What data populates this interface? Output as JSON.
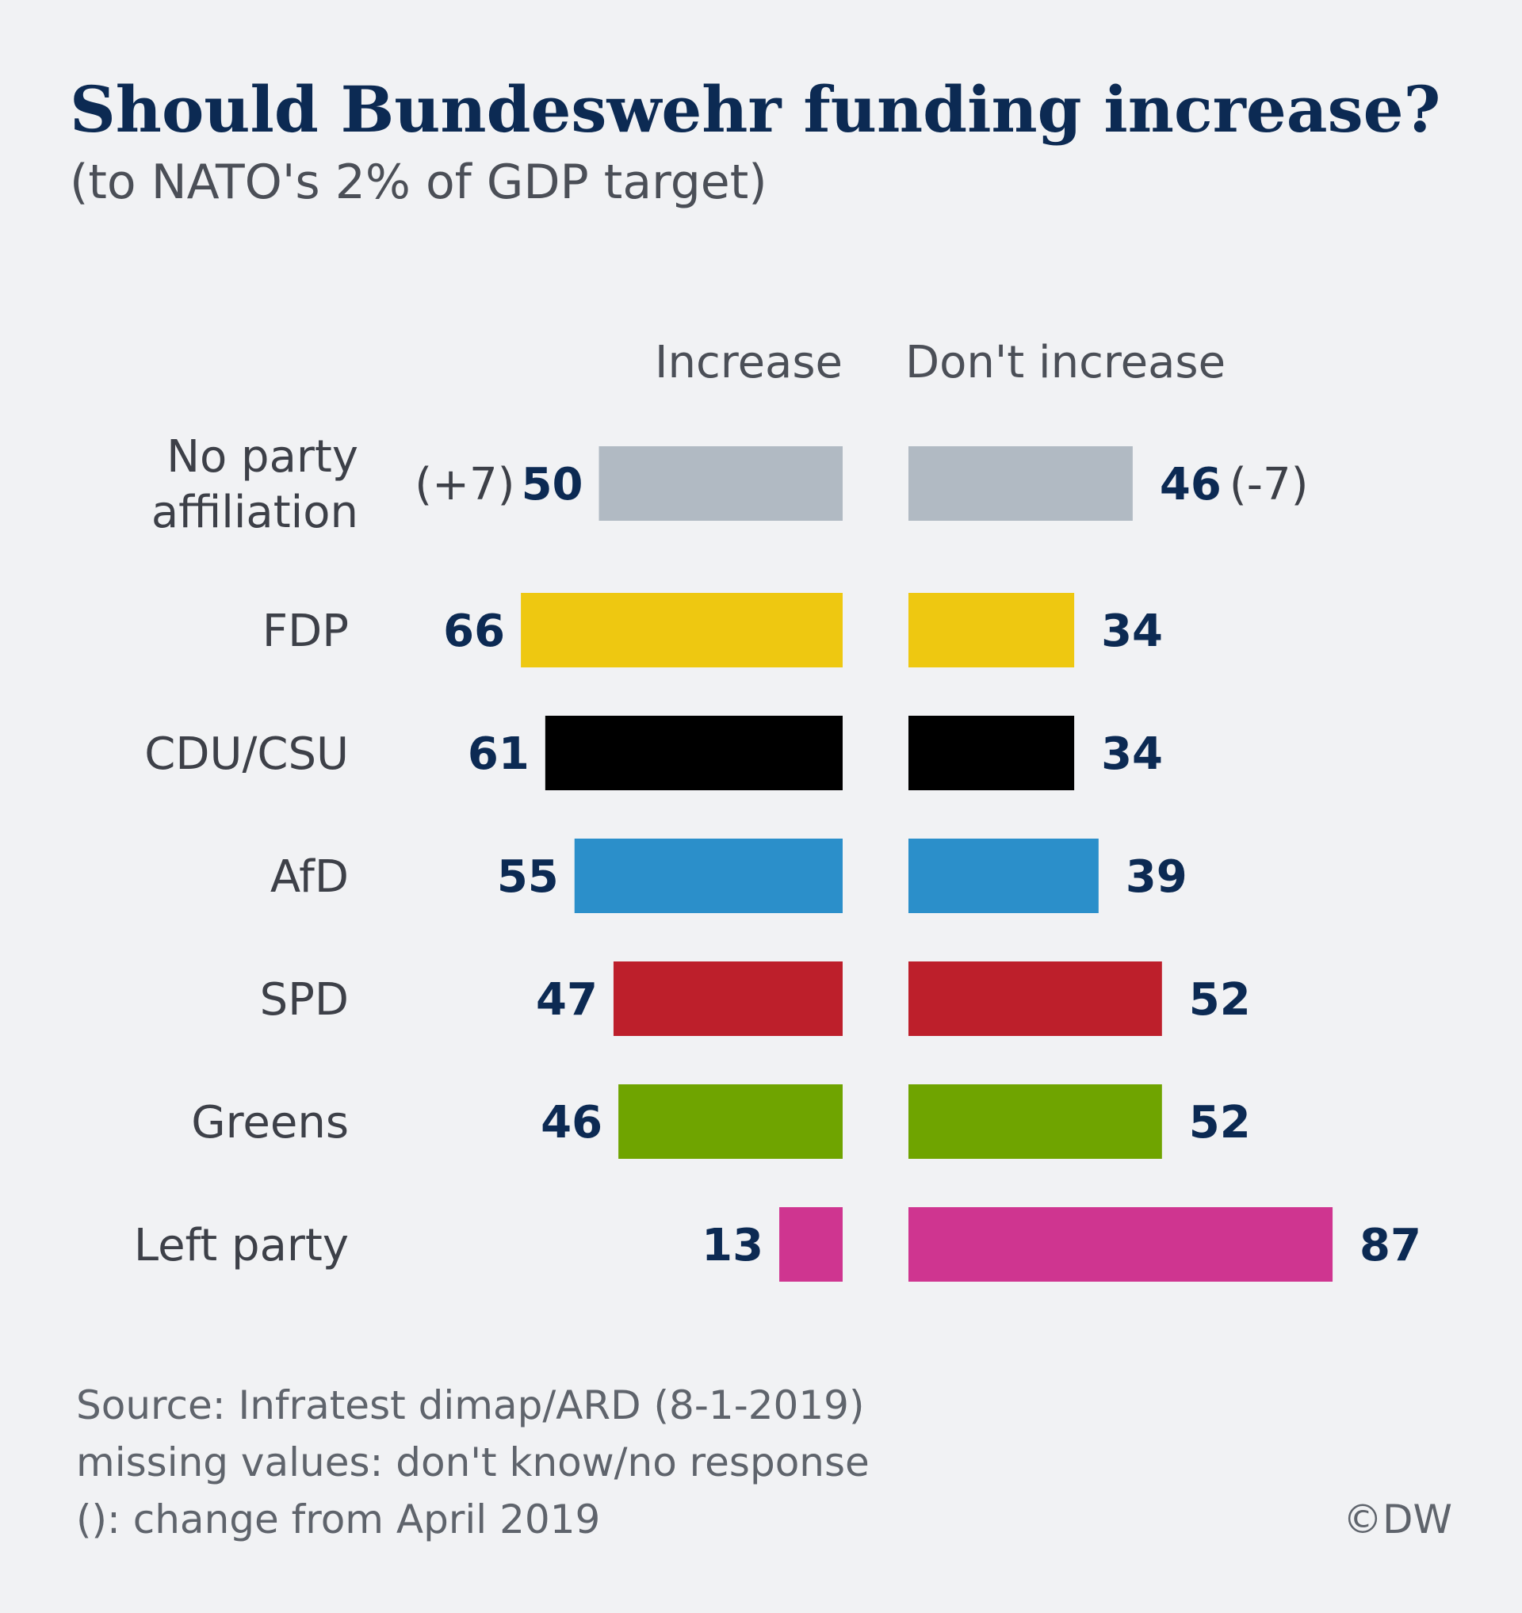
{
  "header": {
    "title": "Should Bundeswehr funding increase?",
    "subtitle": "(to NATO's 2% of GDP target)"
  },
  "chart_data": {
    "type": "bar",
    "orientation": "horizontal-diverging",
    "title": "Should Bundeswehr funding increase?",
    "subtitle": "(to NATO's 2% of GDP target)",
    "categories": [
      [
        "No party",
        "affiliation"
      ],
      [
        "FDP"
      ],
      [
        "CDU/CSU"
      ],
      [
        "AfD"
      ],
      [
        "SPD"
      ],
      [
        "Greens"
      ],
      [
        "Left party"
      ]
    ],
    "series": [
      {
        "name": "Increase",
        "values": [
          50,
          66,
          61,
          55,
          47,
          46,
          13
        ],
        "changes": [
          "(+7)",
          "",
          "",
          "",
          "",
          "",
          ""
        ]
      },
      {
        "name": "Don't increase",
        "values": [
          46,
          34,
          34,
          39,
          52,
          52,
          87
        ],
        "changes": [
          "(-7)",
          "",
          "",
          "",
          "",
          "",
          ""
        ]
      }
    ],
    "colors": [
      "#b1bac3",
      "#eec811",
      "#000000",
      "#2b8fca",
      "#bd1f2b",
      "#6fa400",
      "#cf3590"
    ],
    "value_color": "#0c2a53",
    "xlim": [
      0,
      100
    ],
    "grid": false,
    "legend": "column headers above bars"
  },
  "footer": {
    "source": "Source: Infratest dimap/ARD (8-1-2019)",
    "missing": "missing values: don't know/no response",
    "change_note": "(): change from April 2019",
    "credit": "©DW"
  }
}
